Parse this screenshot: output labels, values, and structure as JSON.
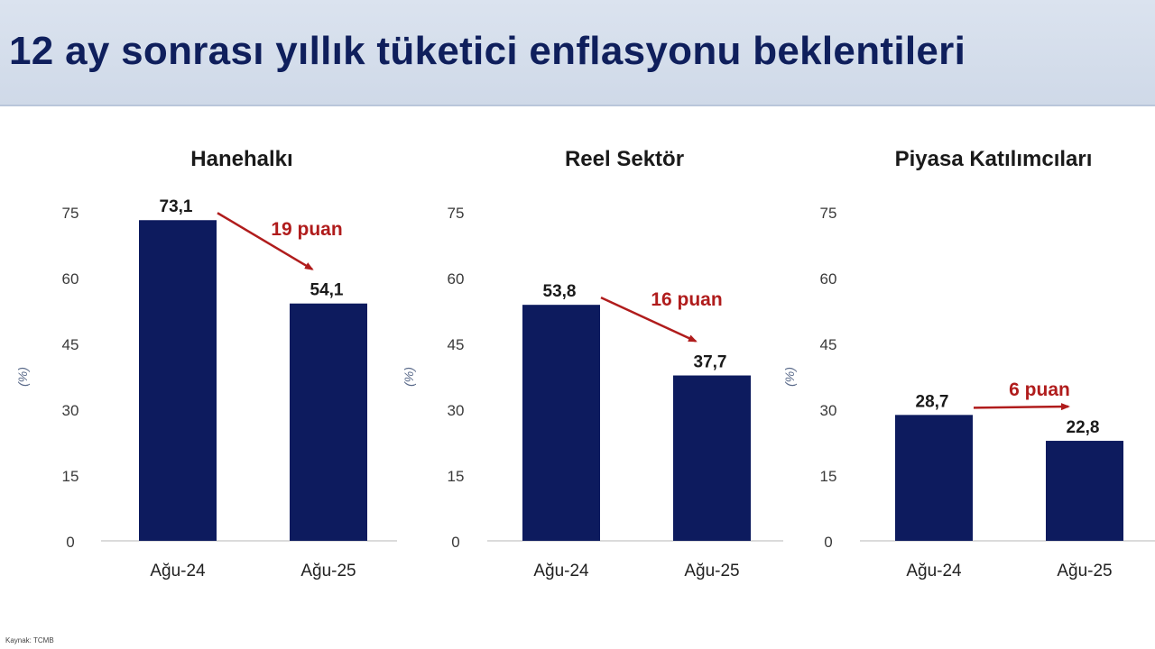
{
  "title": "12 ay sonrası yıllık tüketici enflasyonu beklentileri",
  "source": "Kaynak: TCMB",
  "colors": {
    "bar": "#0d1b5e",
    "arrow": "#b01c1c",
    "axis_text": "#3a3a3a",
    "title": "#0f1f5c"
  },
  "chart_data": [
    {
      "type": "bar",
      "title": "Hanehalkı",
      "ylabel": "(%)",
      "categories": [
        "Ağu-24",
        "Ağu-25"
      ],
      "values": [
        73.1,
        54.1
      ],
      "value_labels": [
        "73,1",
        "54,1"
      ],
      "yticks": [
        0,
        15,
        30,
        45,
        60,
        75
      ],
      "ylim": [
        0,
        75
      ],
      "annotation": "19 puan"
    },
    {
      "type": "bar",
      "title": "Reel Sektör",
      "ylabel": "(%)",
      "categories": [
        "Ağu-24",
        "Ağu-25"
      ],
      "values": [
        53.8,
        37.7
      ],
      "value_labels": [
        "53,8",
        "37,7"
      ],
      "yticks": [
        0,
        15,
        30,
        45,
        60,
        75
      ],
      "ylim": [
        0,
        75
      ],
      "annotation": "16 puan"
    },
    {
      "type": "bar",
      "title": "Piyasa Katılımcıları",
      "ylabel": "(%)",
      "categories": [
        "Ağu-24",
        "Ağu-25"
      ],
      "values": [
        28.7,
        22.8
      ],
      "value_labels": [
        "28,7",
        "22,8"
      ],
      "yticks": [
        0,
        15,
        30,
        45,
        60,
        75
      ],
      "ylim": [
        0,
        75
      ],
      "annotation": "6 puan"
    }
  ]
}
